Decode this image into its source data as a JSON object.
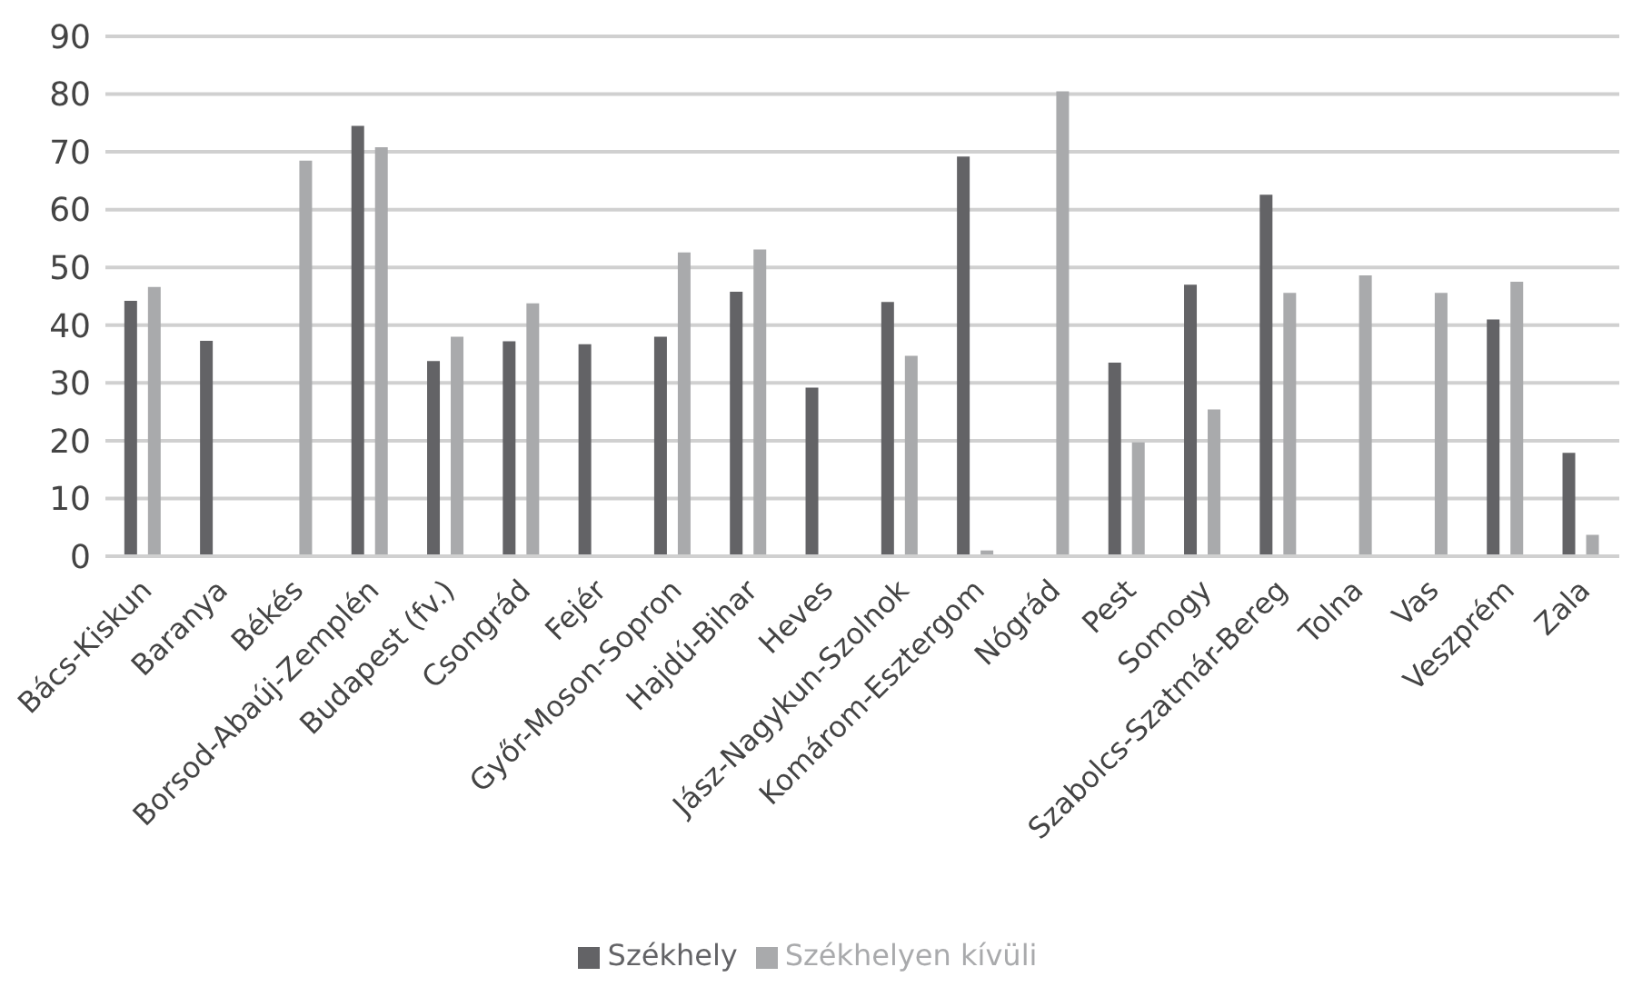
{
  "chart_data": {
    "type": "bar",
    "categories": [
      "Bács-Kiskun",
      "Baranya",
      "Békés",
      "Borsod-Abaúj-Zemplén",
      "Budapest (fv.)",
      "Csongrád",
      "Fejér",
      "Győr-Moson-Sopron",
      "Hajdú-Bihar",
      "Heves",
      "Jász-Nagykun-Szolnok",
      "Komárom-Esztergom",
      "Nógrád",
      "Pest",
      "Somogy",
      "Szabolcs-Szatmár-Bereg",
      "Tolna",
      "Vas",
      "Veszprém",
      "Zala"
    ],
    "series": [
      {
        "name": "Székhely",
        "color": "#636366",
        "values": [
          44.2,
          37.3,
          null,
          74.5,
          33.8,
          37.2,
          36.7,
          38.0,
          45.8,
          29.2,
          44.0,
          69.2,
          null,
          33.5,
          47.0,
          62.6,
          null,
          null,
          41.0,
          17.9
        ]
      },
      {
        "name": "Székhelyen kívüli",
        "color": "#a9aaac",
        "values": [
          46.6,
          null,
          68.5,
          70.8,
          38.0,
          43.8,
          null,
          52.6,
          53.1,
          null,
          34.7,
          1.0,
          80.5,
          19.7,
          25.4,
          45.6,
          48.6,
          45.6,
          47.5,
          3.7
        ]
      }
    ],
    "ylim": [
      0,
      90
    ],
    "yticks": [
      0,
      10,
      20,
      30,
      40,
      50,
      60,
      70,
      80,
      90
    ],
    "grid": "y",
    "legend": "bottom"
  }
}
